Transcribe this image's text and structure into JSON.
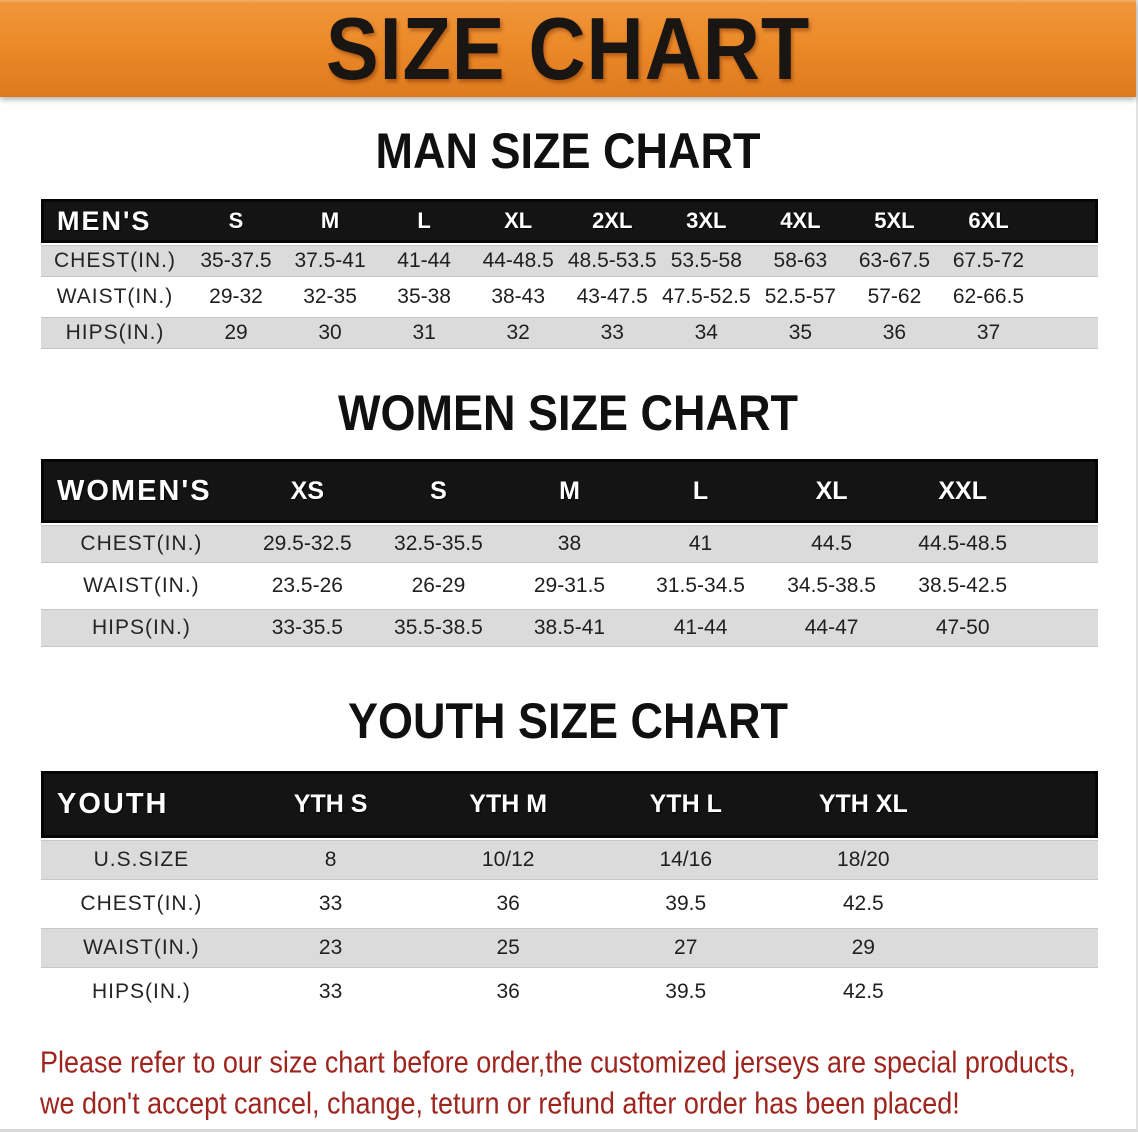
{
  "banner": {
    "title": "SIZE CHART"
  },
  "colors": {
    "banner_orange": "#ED8C2B",
    "band_black": "#141414",
    "stripe_gray": "#DBDBDB",
    "disclaimer_red": "#9E241E"
  },
  "chart_data": [
    {
      "type": "table",
      "title": "MAN SIZE CHART",
      "header_label": "MEN'S",
      "columns": [
        "S",
        "M",
        "L",
        "XL",
        "2XL",
        "3XL",
        "4XL",
        "5XL",
        "6XL"
      ],
      "rows": [
        {
          "label": "CHEST(IN.)",
          "values": [
            "35-37.5",
            "37.5-41",
            "41-44",
            "44-48.5",
            "48.5-53.5",
            "53.5-58",
            "58-63",
            "63-67.5",
            "67.5-72"
          ]
        },
        {
          "label": "WAIST(IN.)",
          "values": [
            "29-32",
            "32-35",
            "35-38",
            "38-43",
            "43-47.5",
            "47.5-52.5",
            "52.5-57",
            "57-62",
            "62-66.5"
          ]
        },
        {
          "label": "HIPS(IN.)",
          "values": [
            "29",
            "30",
            "31",
            "32",
            "33",
            "34",
            "35",
            "36",
            "37"
          ]
        }
      ]
    },
    {
      "type": "table",
      "title": "WOMEN SIZE CHART",
      "header_label": "WOMEN'S",
      "columns": [
        "XS",
        "S",
        "M",
        "L",
        "XL",
        "XXL"
      ],
      "rows": [
        {
          "label": "CHEST(IN.)",
          "values": [
            "29.5-32.5",
            "32.5-35.5",
            "38",
            "41",
            "44.5",
            "44.5-48.5"
          ]
        },
        {
          "label": "WAIST(IN.)",
          "values": [
            "23.5-26",
            "26-29",
            "29-31.5",
            "31.5-34.5",
            "34.5-38.5",
            "38.5-42.5"
          ]
        },
        {
          "label": "HIPS(IN.)",
          "values": [
            "33-35.5",
            "35.5-38.5",
            "38.5-41",
            "41-44",
            "44-47",
            "47-50"
          ]
        }
      ]
    },
    {
      "type": "table",
      "title": "YOUTH SIZE CHART",
      "header_label": "YOUTH",
      "columns": [
        "YTH S",
        "YTH M",
        "YTH L",
        "YTH XL"
      ],
      "rows": [
        {
          "label": "U.S.SIZE",
          "values": [
            "8",
            "10/12",
            "14/16",
            "18/20"
          ]
        },
        {
          "label": "CHEST(IN.)",
          "values": [
            "33",
            "36",
            "39.5",
            "42.5"
          ]
        },
        {
          "label": "WAIST(IN.)",
          "values": [
            "23",
            "25",
            "27",
            "29"
          ]
        },
        {
          "label": "HIPS(IN.)",
          "values": [
            "33",
            "36",
            "39.5",
            "42.5"
          ]
        }
      ]
    }
  ],
  "disclaimer": {
    "line1": "Please refer to our size chart before order,the customized jerseys are special products,",
    "line2": "we don't accept cancel, change, teturn or refund after order has been placed!"
  }
}
